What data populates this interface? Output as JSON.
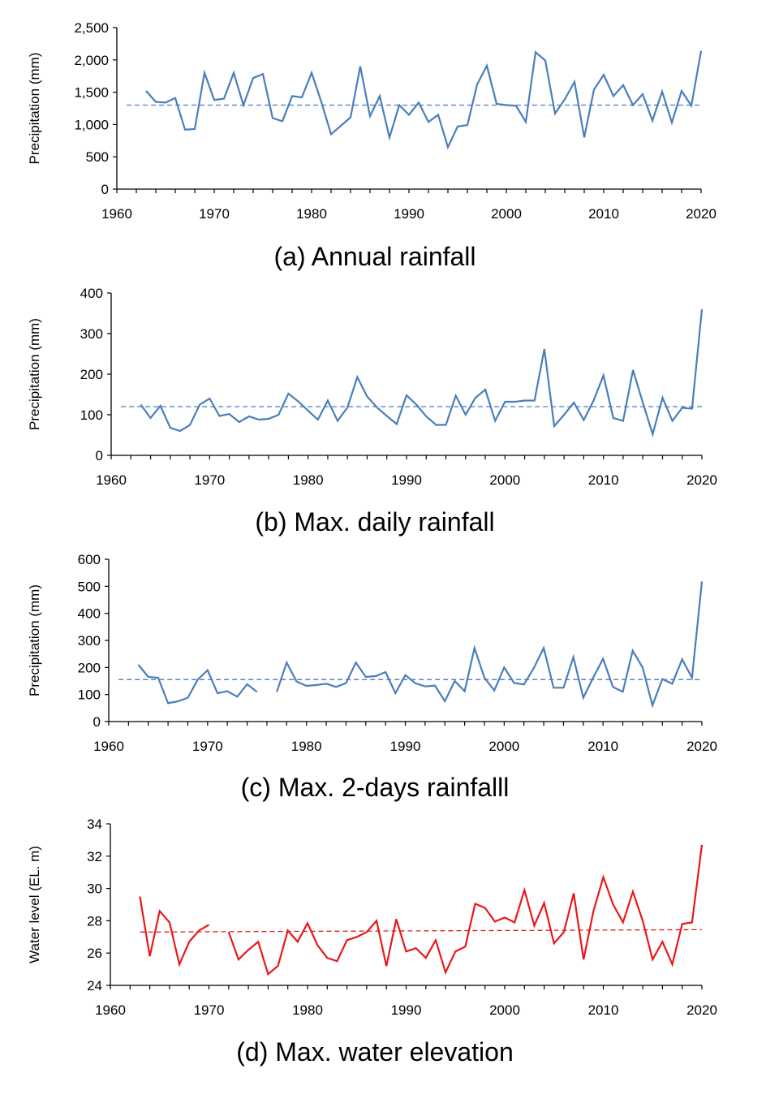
{
  "chart_data": [
    {
      "type": "line",
      "caption": "(a)  Annual  rainfall",
      "ylabel": "Precipitation (mm)",
      "xlabel": "",
      "xlim": [
        1960,
        2020
      ],
      "ylim": [
        0,
        2500
      ],
      "xticks": [
        "1960",
        "1970",
        "1980",
        "1990",
        "2000",
        "2010",
        "2020"
      ],
      "yticks": [
        "0",
        "500",
        "1,000",
        "1,500",
        "2,000",
        "2,500"
      ],
      "grid": false,
      "color": "#4a7ebb",
      "x_start": 1963,
      "values": [
        1520,
        1350,
        1340,
        1410,
        920,
        930,
        1800,
        1380,
        1400,
        1800,
        1300,
        1720,
        1780,
        1100,
        1050,
        1440,
        1420,
        1800,
        1350,
        850,
        980,
        1110,
        1900,
        1130,
        1440,
        800,
        1300,
        1150,
        1340,
        1040,
        1150,
        650,
        970,
        990,
        1620,
        1910,
        1320,
        1300,
        1290,
        1040,
        2120,
        1990,
        1170,
        1390,
        1660,
        800,
        1540,
        1770,
        1440,
        1610,
        1300,
        1470,
        1060,
        1510,
        1030,
        1520,
        1290,
        2140
      ],
      "reference_line": {
        "style": "dashed",
        "from": [
          1961,
          1300
        ],
        "to": [
          2020,
          1300
        ]
      }
    },
    {
      "type": "line",
      "caption": "(b)  Max.  daily  rainfall",
      "ylabel": "Precipitation (mm)",
      "xlabel": "",
      "xlim": [
        1960,
        2020
      ],
      "ylim": [
        0,
        400
      ],
      "xticks": [
        "1960",
        "1970",
        "1980",
        "1990",
        "2000",
        "2010",
        "2020"
      ],
      "yticks": [
        "0",
        "100",
        "200",
        "300",
        "400"
      ],
      "grid": false,
      "color": "#4a7ebb",
      "x_start": 1963,
      "values": [
        125,
        92,
        122,
        68,
        60,
        75,
        125,
        140,
        97,
        102,
        82,
        96,
        88,
        90,
        100,
        152,
        133,
        110,
        88,
        135,
        85,
        118,
        193,
        145,
        118,
        97,
        77,
        148,
        125,
        96,
        75,
        75,
        147,
        100,
        142,
        162,
        85,
        132,
        132,
        135,
        135,
        262,
        72,
        100,
        130,
        87,
        135,
        197,
        92,
        85,
        210,
        130,
        52,
        142,
        85,
        117,
        115,
        360
      ],
      "reference_line": {
        "style": "dashed",
        "from": [
          1961,
          120
        ],
        "to": [
          2020,
          120
        ]
      }
    },
    {
      "type": "line",
      "caption": "(c)  Max.  2-days  rainfalll",
      "ylabel": "Precipitation (mm)",
      "xlabel": "",
      "xlim": [
        1960,
        2020
      ],
      "ylim": [
        0,
        600
      ],
      "xticks": [
        "1960",
        "1970",
        "1980",
        "1990",
        "2000",
        "2010",
        "2020"
      ],
      "yticks": [
        "0",
        "100",
        "200",
        "300",
        "400",
        "500",
        "600"
      ],
      "grid": false,
      "color": "#4a7ebb",
      "x_start": 1963,
      "values": [
        210,
        165,
        162,
        68,
        75,
        88,
        155,
        190,
        105,
        112,
        92,
        138,
        110,
        null,
        110,
        218,
        148,
        132,
        135,
        140,
        128,
        142,
        218,
        165,
        168,
        183,
        105,
        172,
        142,
        130,
        133,
        75,
        150,
        112,
        272,
        162,
        115,
        200,
        143,
        137,
        198,
        272,
        125,
        125,
        238,
        88,
        162,
        232,
        128,
        110,
        262,
        200,
        60,
        157,
        140,
        230,
        162,
        518
      ],
      "reference_line": {
        "style": "dashed",
        "from": [
          1961,
          155
        ],
        "to": [
          2020,
          155
        ]
      }
    },
    {
      "type": "line",
      "caption": "(d)  Max.  water  elevation",
      "ylabel": "Water level (EL. m)",
      "xlabel": "",
      "xlim": [
        1960,
        2020
      ],
      "ylim": [
        24,
        34
      ],
      "xticks": [
        "1960",
        "1970",
        "1980",
        "1990",
        "2000",
        "2010",
        "2020"
      ],
      "yticks": [
        "24",
        "26",
        "28",
        "30",
        "32",
        "34"
      ],
      "grid": false,
      "color": "#e8181a",
      "x_start": 1963,
      "values": [
        29.5,
        25.8,
        28.6,
        27.9,
        25.3,
        26.7,
        27.4,
        27.75,
        null,
        27.3,
        25.6,
        26.2,
        26.7,
        24.7,
        25.2,
        27.4,
        26.7,
        27.85,
        26.5,
        25.7,
        25.5,
        26.8,
        27.0,
        27.3,
        28.0,
        25.2,
        28.1,
        26.1,
        26.3,
        25.7,
        26.8,
        24.8,
        26.1,
        26.4,
        29.05,
        28.8,
        27.95,
        28.2,
        27.9,
        29.9,
        27.7,
        29.1,
        26.6,
        27.3,
        29.7,
        25.6,
        28.6,
        30.7,
        29.0,
        27.9,
        29.8,
        28.0,
        25.6,
        26.7,
        25.3,
        27.8,
        27.9,
        32.7
      ],
      "reference_line": {
        "style": "dashed",
        "from": [
          1963,
          27.3
        ],
        "to": [
          2020,
          27.45
        ]
      }
    }
  ]
}
